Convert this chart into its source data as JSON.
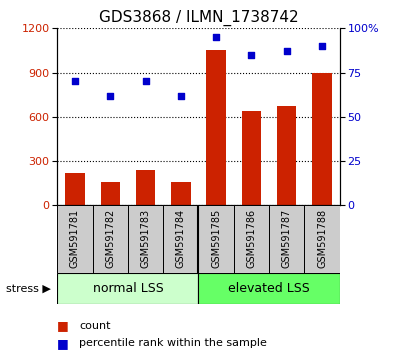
{
  "title": "GDS3868 / ILMN_1738742",
  "categories": [
    "GSM591781",
    "GSM591782",
    "GSM591783",
    "GSM591784",
    "GSM591785",
    "GSM591786",
    "GSM591787",
    "GSM591788"
  ],
  "bar_values": [
    220,
    155,
    240,
    155,
    1050,
    640,
    670,
    900
  ],
  "dot_values": [
    70,
    62,
    70,
    62,
    95,
    85,
    87,
    90
  ],
  "bar_color": "#cc2200",
  "dot_color": "#0000cc",
  "ylim_left": [
    0,
    1200
  ],
  "ylim_right": [
    0,
    100
  ],
  "yticks_left": [
    0,
    300,
    600,
    900,
    1200
  ],
  "yticks_right": [
    0,
    25,
    50,
    75,
    100
  ],
  "yticklabels_right": [
    "0",
    "25",
    "50",
    "75",
    "100%"
  ],
  "group_labels": [
    "normal LSS",
    "elevated LSS"
  ],
  "group_split": 4,
  "group_colors": [
    "#ccffcc",
    "#66ff66"
  ],
  "stress_label": "stress ▶",
  "legend_items": [
    "count",
    "percentile rank within the sample"
  ],
  "bg_color": "#ffffff",
  "plot_bg": "#ffffff",
  "title_fontsize": 11,
  "tick_label_color_left": "#cc2200",
  "tick_label_color_right": "#0000cc",
  "bar_width": 0.55,
  "label_area_color": "#cccccc"
}
